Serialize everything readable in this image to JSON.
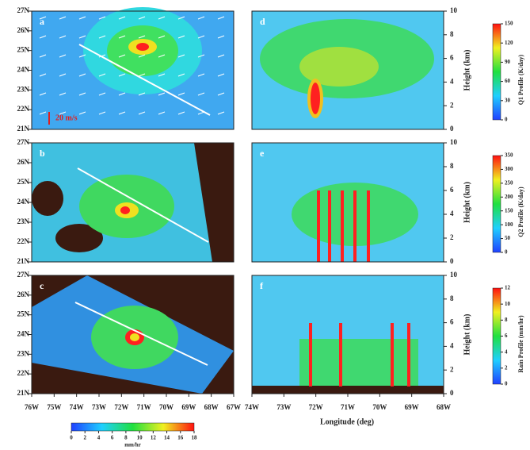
{
  "chart_data": [
    {
      "type": "heatmap",
      "panel_label": "a",
      "ylim": [
        21,
        27
      ],
      "yticks": [
        {
          "value": 27,
          "label": "27N"
        },
        {
          "value": 26,
          "label": "26N"
        },
        {
          "value": 25,
          "label": "25N"
        },
        {
          "value": 24,
          "label": "24N"
        },
        {
          "value": 23,
          "label": "23N"
        },
        {
          "value": 22,
          "label": "22N"
        },
        {
          "value": 21,
          "label": "21N"
        }
      ],
      "annotation": "20 m/s"
    },
    {
      "type": "heatmap",
      "panel_label": "b",
      "ylim": [
        21,
        27
      ],
      "yticks": [
        {
          "value": 27,
          "label": "27N"
        },
        {
          "value": 26,
          "label": "26N"
        },
        {
          "value": 25,
          "label": "25N"
        },
        {
          "value": 24,
          "label": "24N"
        },
        {
          "value": 23,
          "label": "23N"
        },
        {
          "value": 22,
          "label": "22N"
        },
        {
          "value": 21,
          "label": "21N"
        }
      ]
    },
    {
      "type": "heatmap",
      "panel_label": "c",
      "xlim": [
        -76,
        -67
      ],
      "ylim": [
        21,
        27
      ],
      "xticks": [
        {
          "value": -76,
          "label": "76W"
        },
        {
          "value": -75,
          "label": "75W"
        },
        {
          "value": -74,
          "label": "74W"
        },
        {
          "value": -73,
          "label": "73W"
        },
        {
          "value": -72,
          "label": "72W"
        },
        {
          "value": -71,
          "label": "71W"
        },
        {
          "value": -70,
          "label": "70W"
        },
        {
          "value": -69,
          "label": "69W"
        },
        {
          "value": -68,
          "label": "68W"
        },
        {
          "value": -67,
          "label": "67W"
        }
      ],
      "yticks": [
        {
          "value": 27,
          "label": "27N"
        },
        {
          "value": 26,
          "label": "26N"
        },
        {
          "value": 25,
          "label": "25N"
        },
        {
          "value": 24,
          "label": "24N"
        },
        {
          "value": 23,
          "label": "23N"
        },
        {
          "value": 22,
          "label": "22N"
        },
        {
          "value": 21,
          "label": "21N"
        }
      ],
      "colorbar": {
        "ticks": [
          0,
          2,
          4,
          6,
          8,
          10,
          12,
          14,
          16,
          18
        ],
        "label": "mm/hr"
      }
    },
    {
      "type": "heatmap",
      "panel_label": "d",
      "y_label": "Height (km)",
      "ylim": [
        0,
        10
      ],
      "yticks": [
        0,
        2,
        4,
        6,
        8,
        10
      ],
      "colorbar": {
        "ticks": [
          150,
          120,
          90,
          60,
          30,
          0
        ],
        "label": "Q1 Profile (K/day)"
      }
    },
    {
      "type": "heatmap",
      "panel_label": "e",
      "y_label": "Height (km)",
      "ylim": [
        0,
        10
      ],
      "yticks": [
        0,
        2,
        4,
        6,
        8,
        10
      ],
      "colorbar": {
        "ticks": [
          350,
          300,
          250,
          200,
          150,
          100,
          50,
          0
        ],
        "label": "Q2 Profile (K/day)"
      }
    },
    {
      "type": "heatmap",
      "panel_label": "f",
      "y_label": "Height (km)",
      "x_label": "Longitude (deg)",
      "xlim": [
        -74,
        -68
      ],
      "ylim": [
        0,
        10
      ],
      "xticks": [
        {
          "value": -74,
          "label": "74W"
        },
        {
          "value": -73,
          "label": "73W"
        },
        {
          "value": -72,
          "label": "72W"
        },
        {
          "value": -71,
          "label": "71W"
        },
        {
          "value": -70,
          "label": "70W"
        },
        {
          "value": -69,
          "label": "69W"
        },
        {
          "value": -68,
          "label": "68W"
        }
      ],
      "yticks": [
        0,
        2,
        4,
        6,
        8,
        10
      ],
      "colorbar": {
        "ticks": [
          12,
          10,
          8,
          6,
          4,
          2,
          0
        ],
        "label": "Rain Profile (mm/hr)"
      }
    }
  ]
}
